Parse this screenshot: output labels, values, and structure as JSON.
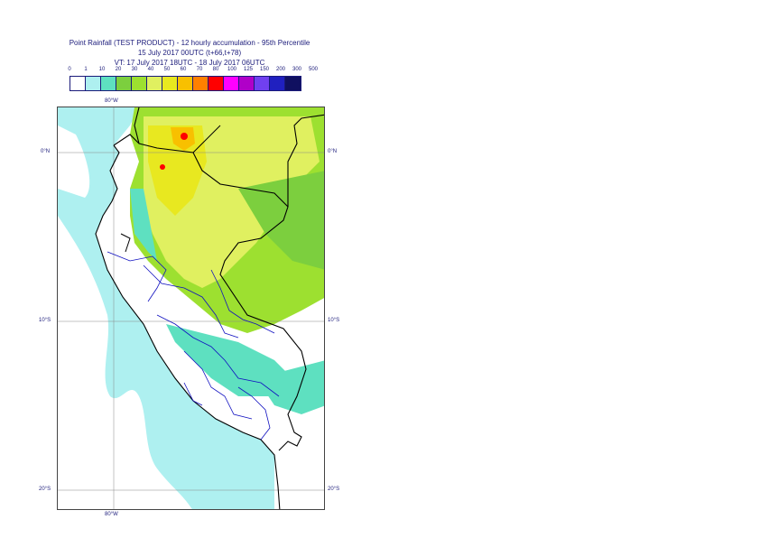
{
  "title": {
    "line1": "Point Rainfall (TEST PRODUCT) - 12 hourly accumulation - 95th Percentile",
    "line2": "15 July 2017 00UTC (t+66,t+78)",
    "line3": "VT: 17 July 2017 18UTC - 18 July 2017 06UTC"
  },
  "legend": {
    "ticks": [
      "0",
      "1",
      "10",
      "20",
      "30",
      "40",
      "50",
      "60",
      "70",
      "80",
      "100",
      "125",
      "150",
      "200",
      "300",
      "500"
    ],
    "colors": [
      "#ffffff",
      "#aef0f0",
      "#5ee0c0",
      "#7ccf3e",
      "#9de030",
      "#e0f060",
      "#e8e820",
      "#f8c000",
      "#ff8000",
      "#ff0000",
      "#ff00ff",
      "#b000c8",
      "#7040f0",
      "#2020c0",
      "#101060"
    ]
  },
  "map": {
    "lon_top": "80°W",
    "lon_bottom": "80°W",
    "lat_0_left": "0°N",
    "lat_0_right": "0°N",
    "lat_10_left": "10°S",
    "lat_10_right": "10°S",
    "lat_20_left": "20°S",
    "lat_20_right": "20°S",
    "ocean_color": "#aef0f0",
    "land_color": "#ffffff",
    "border_color": "#000000",
    "region_color": "#1010c0"
  }
}
